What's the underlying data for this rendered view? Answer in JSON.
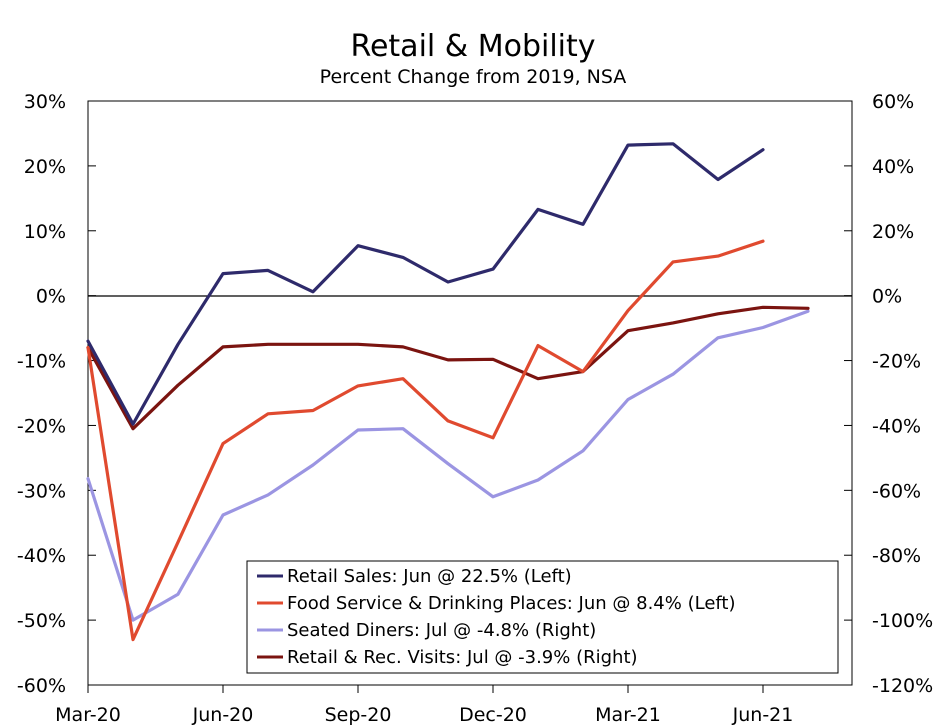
{
  "chart_data": {
    "type": "line",
    "title": "Retail & Mobility",
    "subtitle": "Percent Change from 2019, NSA",
    "x_tick_labels": [
      "Mar-20",
      "Jun-20",
      "Sep-20",
      "Dec-20",
      "Mar-21",
      "Jun-21"
    ],
    "x_tick_months": [
      0,
      3,
      6,
      9,
      12,
      15
    ],
    "left_axis": {
      "ylim": [
        -60,
        30
      ],
      "ticks": [
        30,
        20,
        10,
        0,
        -10,
        -20,
        -30,
        -40,
        -50,
        -60
      ],
      "labels": [
        "30%",
        "20%",
        "10%",
        "0%",
        "-10%",
        "-20%",
        "-30%",
        "-40%",
        "-50%",
        "-60%"
      ]
    },
    "right_axis": {
      "ylim": [
        -120,
        60
      ],
      "ticks": [
        60,
        40,
        20,
        0,
        -20,
        -40,
        -60,
        -80,
        -100,
        -120
      ],
      "labels": [
        "60%",
        "40%",
        "20%",
        "0%",
        "-20%",
        "-40%",
        "-60%",
        "-80%",
        "-100%",
        "-120%"
      ]
    },
    "series": [
      {
        "name": "Retail Sales: Jun @ 22.5% (Left)",
        "axis": "left",
        "color": "#2e2a6b",
        "x": [
          0,
          1,
          2,
          3,
          4,
          5,
          6,
          7,
          8,
          9,
          10,
          11,
          12,
          13,
          14,
          15
        ],
        "values": [
          -7,
          -19.8,
          -7.5,
          3.4,
          3.9,
          0.6,
          7.7,
          5.9,
          2.1,
          4.1,
          13.3,
          11,
          23.2,
          23.4,
          17.9,
          22.5
        ]
      },
      {
        "name": "Food Service & Drinking Places: Jun @ 8.4% (Left)",
        "axis": "left",
        "color": "#e04a2f",
        "x": [
          0,
          1,
          2,
          3,
          4,
          5,
          6,
          7,
          8,
          9,
          10,
          11,
          12,
          13,
          14,
          15
        ],
        "values": [
          -8,
          -53,
          -38,
          -22.8,
          -18.2,
          -17.7,
          -13.9,
          -12.8,
          -19.3,
          -21.9,
          -7.7,
          -11.7,
          -2.3,
          5.2,
          6.1,
          8.4
        ]
      },
      {
        "name": "Seated Diners: Jul @ -4.8% (Right)",
        "axis": "right",
        "color": "#9b95e2",
        "x": [
          0,
          1,
          2,
          3,
          4,
          5,
          6,
          7,
          8,
          9,
          10,
          11,
          12,
          13,
          14,
          15,
          16
        ],
        "values": [
          -56.4,
          -100,
          -92,
          -67.6,
          -61.4,
          -52.2,
          -41.4,
          -41,
          -51.8,
          -62,
          -56.8,
          -47.8,
          -32,
          -24.2,
          -13,
          -9.8,
          -4.8
        ]
      },
      {
        "name": "Retail & Rec. Visits: Jul @ -3.9% (Right)",
        "axis": "right",
        "color": "#7b1410",
        "x": [
          0,
          1,
          2,
          3,
          4,
          5,
          6,
          7,
          8,
          9,
          10,
          11,
          12,
          13,
          14,
          15,
          16
        ],
        "values": [
          -16,
          -41,
          -27.6,
          -15.8,
          -15,
          -15,
          -15,
          -15.8,
          -19.8,
          -19.6,
          -25.6,
          -23.4,
          -10.8,
          -8.4,
          -5.6,
          -3.6,
          -3.9
        ]
      }
    ]
  }
}
